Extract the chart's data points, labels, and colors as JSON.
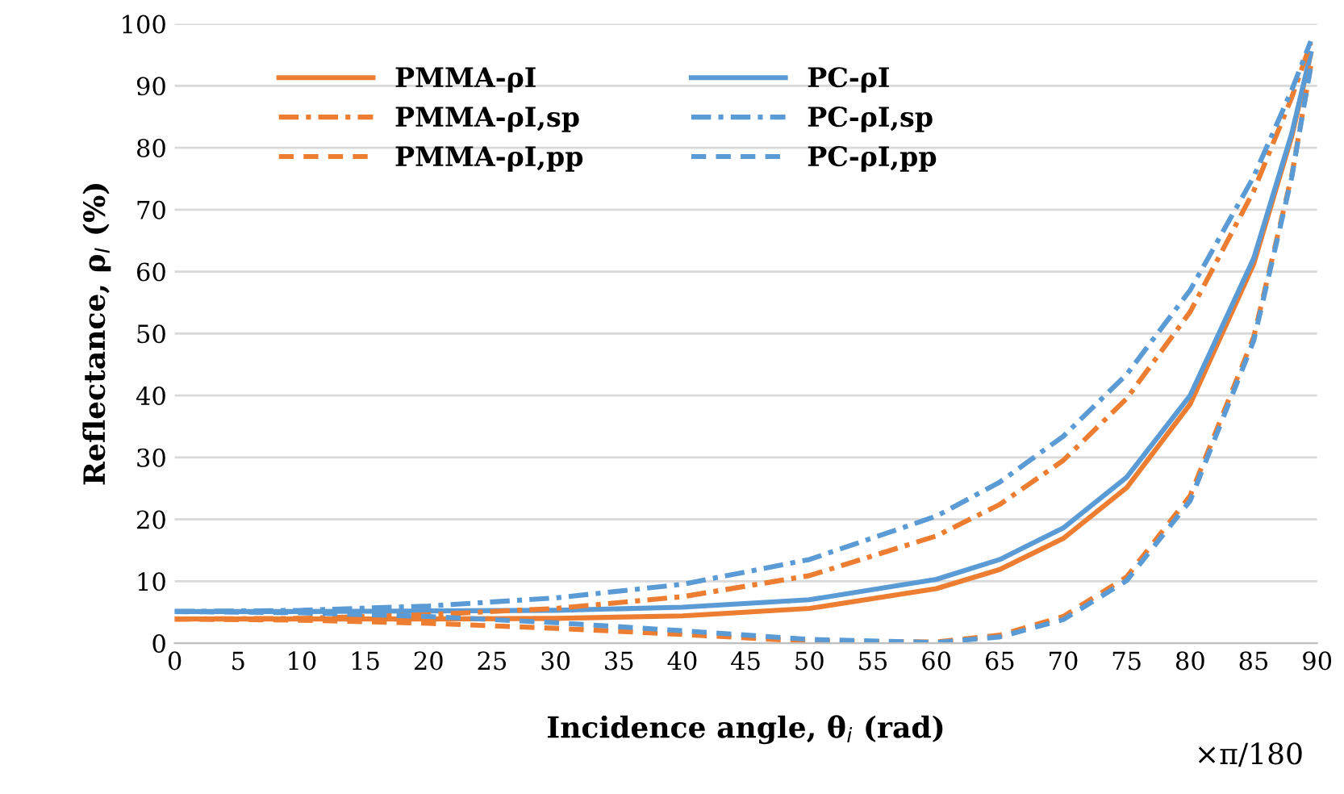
{
  "chart_data": {
    "type": "line",
    "xlabel": "Incidence angle, θ$_{i}$ (rad)",
    "ylabel": "Reflectance, ρ$_{I}$ (%)",
    "annotations": [
      "×π/180"
    ],
    "x": [
      0,
      10,
      20,
      30,
      40,
      50,
      60,
      65,
      70,
      75,
      80,
      85,
      88,
      89.5
    ],
    "series": [
      {
        "name": "PMMA-ρI",
        "color": "#ed7d31",
        "line_style": "solid",
        "values": [
          3.9,
          3.9,
          3.9,
          4.0,
          4.4,
          5.6,
          8.8,
          11.9,
          16.9,
          25.1,
          38.6,
          61.2,
          81.8,
          95.1
        ]
      },
      {
        "name": "PC-ρI",
        "color": "#5b9bd5",
        "line_style": "solid",
        "values": [
          5.1,
          5.1,
          5.2,
          5.3,
          5.8,
          7.0,
          10.3,
          13.5,
          18.6,
          26.8,
          40.0,
          62.1,
          82.3,
          95.2
        ]
      },
      {
        "name": "PMMA-ρI,sp",
        "color": "#ed7d31",
        "line_style": "dashdot",
        "values": [
          3.9,
          4.0,
          4.6,
          5.6,
          7.5,
          10.9,
          17.3,
          22.4,
          29.5,
          39.5,
          53.5,
          73.0,
          88.1,
          96.9
        ]
      },
      {
        "name": "PC-ρI,sp",
        "color": "#5b9bd5",
        "line_style": "dashdot",
        "values": [
          5.1,
          5.3,
          6.0,
          7.3,
          9.5,
          13.5,
          20.5,
          26.0,
          33.4,
          43.4,
          57.0,
          75.3,
          89.3,
          97.2
        ]
      },
      {
        "name": "PMMA-ρI,pp",
        "color": "#ed7d31",
        "line_style": "dashed",
        "values": [
          3.9,
          3.7,
          3.2,
          2.4,
          1.4,
          0.3,
          0.2,
          1.3,
          4.3,
          10.7,
          23.8,
          49.4,
          75.5,
          93.2
        ]
      },
      {
        "name": "PC-ρI,pp",
        "color": "#5b9bd5",
        "line_style": "dashed",
        "values": [
          5.1,
          4.9,
          4.3,
          3.3,
          2.0,
          0.6,
          0.1,
          1.0,
          3.8,
          10.1,
          23.0,
          48.8,
          75.2,
          93.1
        ]
      }
    ],
    "xlim": [
      0,
      90
    ],
    "xticks": [
      0,
      5,
      10,
      15,
      20,
      25,
      30,
      35,
      40,
      45,
      50,
      55,
      60,
      65,
      70,
      75,
      80,
      85,
      90
    ],
    "ylim": [
      0,
      100
    ],
    "yticks": [
      0,
      10,
      20,
      30,
      40,
      50,
      60,
      70,
      80,
      90,
      100
    ],
    "grid": "y",
    "legend": "top left",
    "marker": "none"
  }
}
